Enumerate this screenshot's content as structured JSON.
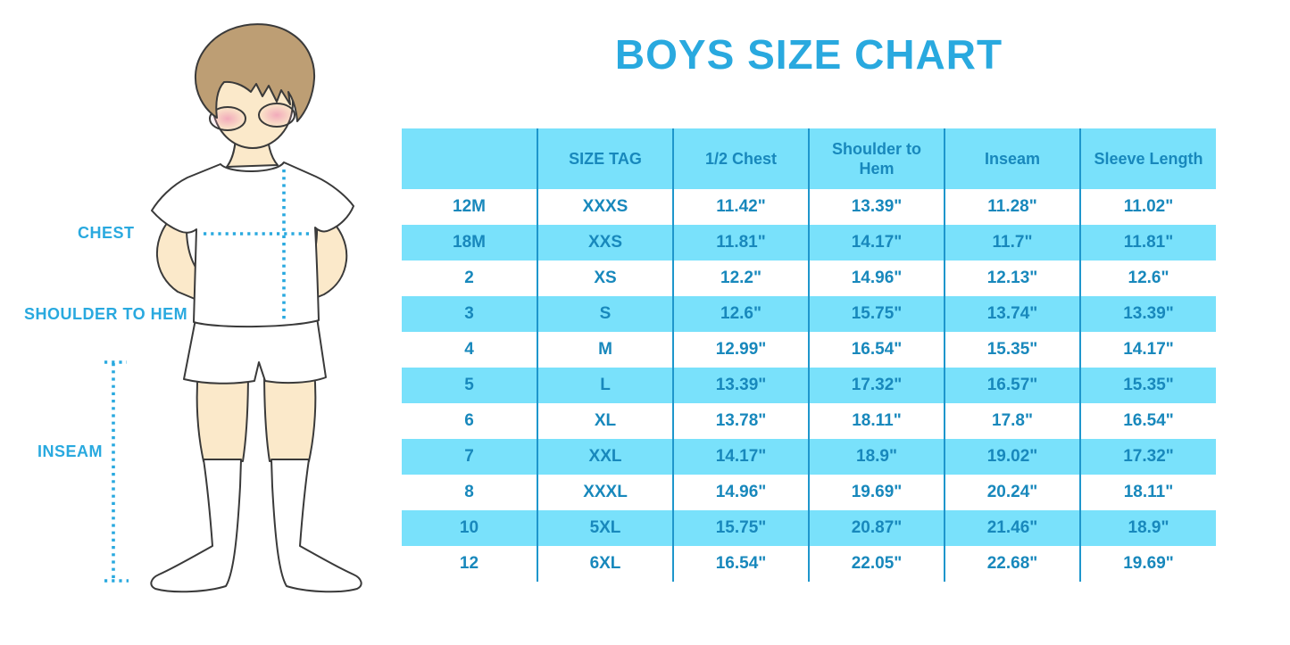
{
  "title": "BOYS SIZE CHART",
  "measurement_labels": {
    "chest": "CHEST",
    "shoulder_to_hem": "SHOULDER TO HEM",
    "inseam": "INSEAM"
  },
  "colors": {
    "accent": "#29A9DF",
    "table_text": "#1888BC",
    "stripe": "#79E1FB",
    "grid": "#1E96CC",
    "skin": "#FBE9CA",
    "hair": "#BD9E74",
    "cheek": "#F0A0B8",
    "outline": "#3A3A3A",
    "garment": "#FFFFFF"
  },
  "chart_data": {
    "type": "table",
    "title": "BOYS SIZE CHART",
    "columns": [
      "",
      "SIZE TAG",
      "1/2 Chest",
      "Shoulder to Hem",
      "Inseam",
      "Sleeve Length"
    ],
    "rows": [
      [
        "12M",
        "XXXS",
        "11.42\"",
        "13.39\"",
        "11.28\"",
        "11.02\""
      ],
      [
        "18M",
        "XXS",
        "11.81\"",
        "14.17\"",
        "11.7\"",
        "11.81\""
      ],
      [
        "2",
        "XS",
        "12.2\"",
        "14.96\"",
        "12.13\"",
        "12.6\""
      ],
      [
        "3",
        "S",
        "12.6\"",
        "15.75\"",
        "13.74\"",
        "13.39\""
      ],
      [
        "4",
        "M",
        "12.99\"",
        "16.54\"",
        "15.35\"",
        "14.17\""
      ],
      [
        "5",
        "L",
        "13.39\"",
        "17.32\"",
        "16.57\"",
        "15.35\""
      ],
      [
        "6",
        "XL",
        "13.78\"",
        "18.11\"",
        "17.8\"",
        "16.54\""
      ],
      [
        "7",
        "XXL",
        "14.17\"",
        "18.9\"",
        "19.02\"",
        "17.32\""
      ],
      [
        "8",
        "XXXL",
        "14.96\"",
        "19.69\"",
        "20.24\"",
        "18.11\""
      ],
      [
        "10",
        "5XL",
        "15.75\"",
        "20.87\"",
        "21.46\"",
        "18.9\""
      ],
      [
        "12",
        "6XL",
        "16.54\"",
        "22.05\"",
        "22.68\"",
        "19.69\""
      ]
    ],
    "row_striping": "alternating white and light blue, header light blue",
    "grid": "vertical column separators only"
  }
}
